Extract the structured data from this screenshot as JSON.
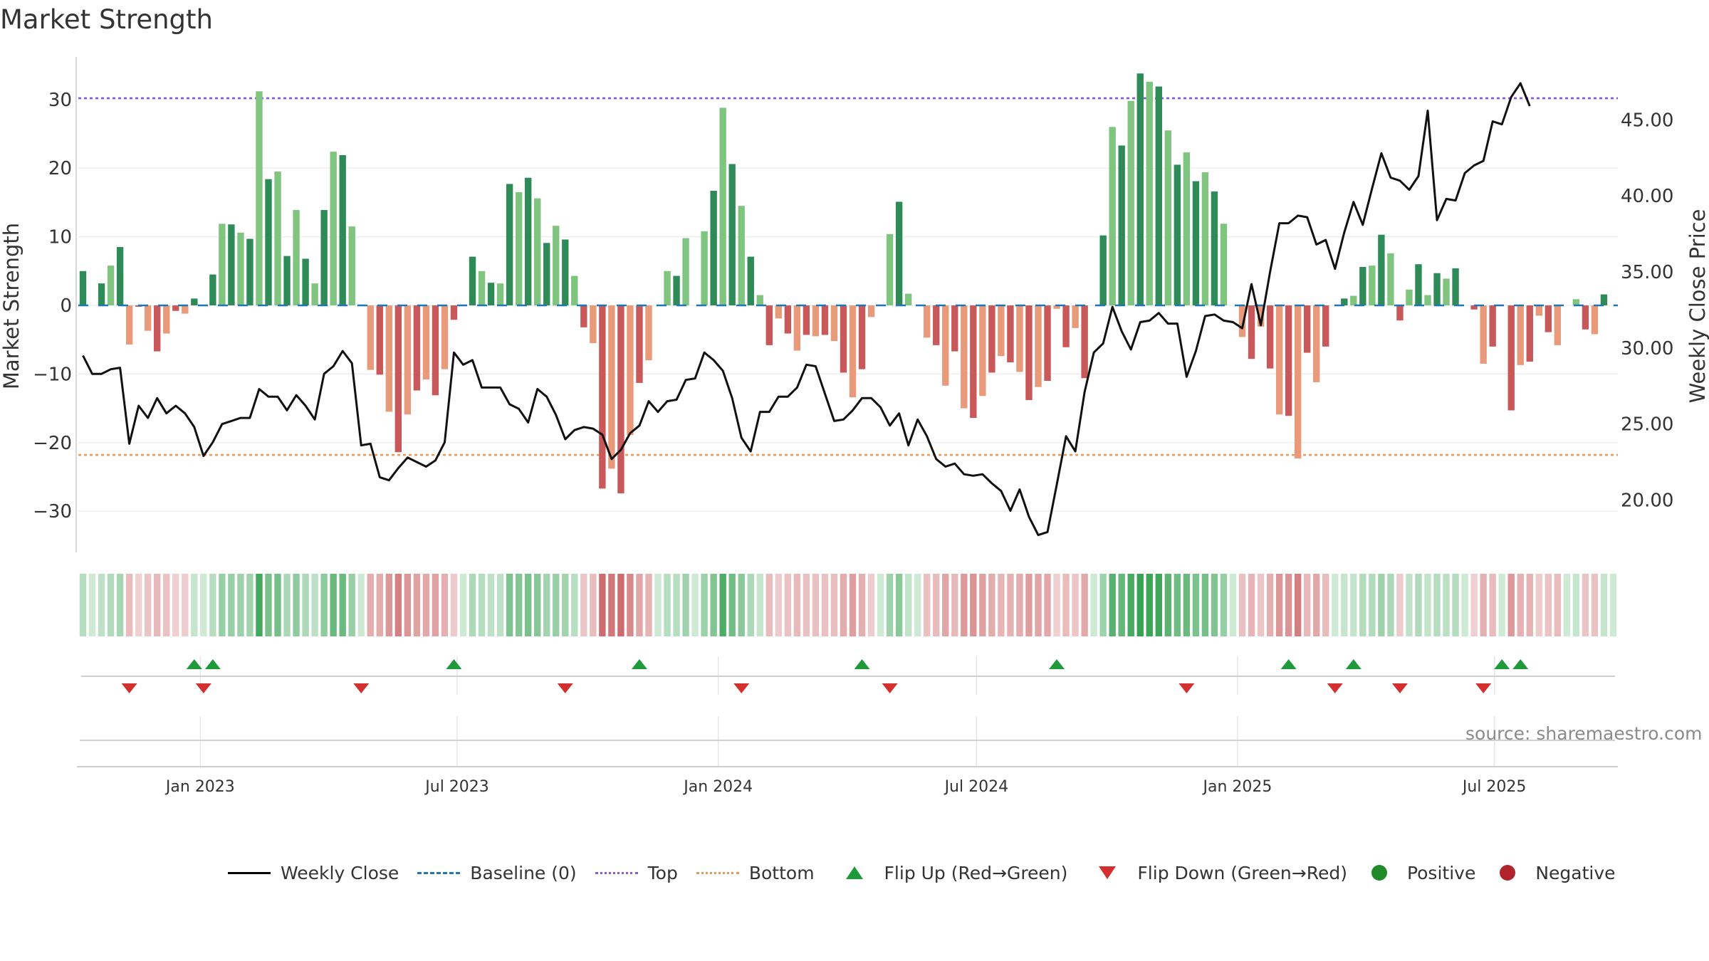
{
  "title": "Market Strength",
  "source": "source: sharemaestro.com",
  "colors": {
    "pos_dark": "#2e8b57",
    "pos_light": "#7fc47f",
    "neg_dark": "#c8585a",
    "neg_light": "#e89a7a",
    "line": "#111111",
    "top": "#8a5cd6",
    "bottom": "#e89a5a",
    "baseline": "#1f77b4",
    "flip_up": "#1f9a3a",
    "flip_down": "#d32f2f"
  },
  "legend": {
    "weekly_close": "Weekly Close",
    "baseline": "Baseline (0)",
    "top": "Top",
    "bottom": "Bottom",
    "flip_up": "Flip Up (Red→Green)",
    "flip_down": "Flip Down (Green→Red)",
    "positive": "Positive",
    "negative": "Negative"
  },
  "chart_data": {
    "type": "bar",
    "title": "Market Strength",
    "ylabel": "Market Strength",
    "y2label": "Weekly Close Price",
    "ylim": [
      -36,
      36
    ],
    "y2lim": [
      16.56,
      49.04
    ],
    "yticks": [
      30,
      20,
      10,
      0,
      -10,
      -20,
      -30
    ],
    "ytick_labels": [
      "30",
      "20",
      "10",
      "0",
      "−10",
      "−20",
      "−30"
    ],
    "y2ticks": [
      45,
      40,
      35,
      30,
      25,
      20
    ],
    "y2tick_labels": [
      "45.00",
      "40.00",
      "35.00",
      "30.00",
      "25.00",
      "20.00"
    ],
    "x_start": "2022-10-07",
    "x_end": "2025-09-26",
    "xticks": [
      {
        "date": "2023-01-01",
        "label": "Jan 2023"
      },
      {
        "date": "2023-07-01",
        "label": "Jul 2023"
      },
      {
        "date": "2024-01-01",
        "label": "Jan 2024"
      },
      {
        "date": "2024-07-01",
        "label": "Jul 2024"
      },
      {
        "date": "2025-01-01",
        "label": "Jan 2025"
      },
      {
        "date": "2025-07-01",
        "label": "Jul 2025"
      }
    ],
    "top_level": 30.2,
    "bottom_level": -21.8,
    "strength": [
      5,
      0,
      3.2,
      5.8,
      8.5,
      -5.7,
      -0.2,
      -3.7,
      -6.7,
      -4.1,
      -0.8,
      -1.2,
      1,
      0,
      4.5,
      11.9,
      11.8,
      10.6,
      9.7,
      31.2,
      18.4,
      19.5,
      7.2,
      13.9,
      6.8,
      3.2,
      13.9,
      22.4,
      21.9,
      11.5,
      0,
      -9.4,
      -10.1,
      -15.5,
      -21.4,
      -15.9,
      -12.4,
      -10.8,
      -13.1,
      -9.3,
      -2.1,
      0,
      7.1,
      5,
      3.3,
      3.2,
      17.7,
      16.5,
      18.6,
      15.6,
      9.1,
      11.6,
      9.6,
      4.3,
      -3.2,
      -5.5,
      -26.7,
      -23.8,
      -27.4,
      -18.9,
      -11.3,
      -8,
      0,
      5,
      4.3,
      9.8,
      0,
      10.8,
      16.7,
      28.8,
      20.6,
      14.5,
      7.1,
      1.5,
      -5.8,
      -1.9,
      -4.1,
      -6.6,
      -4.3,
      -4.5,
      -4.3,
      -5.2,
      -9.8,
      -13.4,
      -9.3,
      -1.7,
      0,
      10.4,
      15.1,
      1.7,
      0,
      -4.7,
      -5.8,
      -11.7,
      -6.7,
      -15,
      -16.4,
      -13.2,
      -9.8,
      -7.4,
      -8.3,
      -9.7,
      -13.8,
      -11.9,
      -11,
      -0.5,
      -6.1,
      -3.3,
      -10.6,
      0,
      10.2,
      26,
      23.3,
      29.8,
      33.8,
      32.6,
      31.9,
      25.5,
      20.5,
      22.3,
      18.1,
      19.4,
      16.6,
      11.9,
      0,
      -4.6,
      -7.8,
      -3.1,
      -9.2,
      -15.9,
      -16.1,
      -22.3,
      -6.9,
      -11.2,
      -6,
      0,
      1,
      1.4,
      5.6,
      5.8,
      10.3,
      7.6,
      -2.2,
      2.3,
      6,
      1.5,
      4.7,
      3.9,
      5.4,
      0,
      -0.6,
      -8.5,
      -6,
      0,
      -15.3,
      -8.7,
      -8.2,
      -1.5,
      -3.9,
      -5.8,
      0,
      0.9,
      -3.5,
      -4.2,
      1.6,
      0
    ],
    "close": [
      29.5,
      28.3,
      28.3,
      28.6,
      28.7,
      23.7,
      26.2,
      25.4,
      26.7,
      25.7,
      26.2,
      25.7,
      24.8,
      22.9,
      23.8,
      25.0,
      25.2,
      25.4,
      25.4,
      27.3,
      26.8,
      26.8,
      25.9,
      26.9,
      26.2,
      25.3,
      28.3,
      28.8,
      29.8,
      29.0,
      23.6,
      23.7,
      21.5,
      21.3,
      22.1,
      22.8,
      22.5,
      22.2,
      22.6,
      23.8,
      29.7,
      28.9,
      29.2,
      27.4,
      27.4,
      27.4,
      26.3,
      26.0,
      25.1,
      27.3,
      26.8,
      25.6,
      24.0,
      24.6,
      24.8,
      24.7,
      24.3,
      22.7,
      23.3,
      24.4,
      24.9,
      26.5,
      25.8,
      26.5,
      26.6,
      27.9,
      28.0,
      29.7,
      29.2,
      28.5,
      26.7,
      24.1,
      23.2,
      25.8,
      25.8,
      26.8,
      26.8,
      27.4,
      28.9,
      28.8,
      27.0,
      25.2,
      25.3,
      25.9,
      26.7,
      26.7,
      26.1,
      24.9,
      25.7,
      23.6,
      25.3,
      24.2,
      22.7,
      22.2,
      22.4,
      21.7,
      21.6,
      21.7,
      21.1,
      20.6,
      19.3,
      20.7,
      18.9,
      17.7,
      17.9,
      21.0,
      24.2,
      23.2,
      27.1,
      29.7,
      30.3,
      32.7,
      31.1,
      29.9,
      31.7,
      31.8,
      32.3,
      31.6,
      31.6,
      28.1,
      29.8,
      32.1,
      32.2,
      31.8,
      31.7,
      31.3,
      34.2,
      31.5,
      35.0,
      38.2,
      38.2,
      38.7,
      38.6,
      36.8,
      37.1,
      35.2,
      37.6,
      39.6,
      38.1,
      40.5,
      42.8,
      41.2,
      41.0,
      40.4,
      41.3,
      45.6,
      38.4,
      39.8,
      39.7,
      41.5,
      42.0,
      42.3,
      44.9,
      44.7,
      46.5,
      47.4,
      45.9
    ],
    "flip_up_weeks": [
      12,
      14,
      40,
      60,
      84,
      105,
      130,
      137,
      153,
      155
    ],
    "flip_down_weeks": [
      5,
      13,
      30,
      52,
      71,
      87,
      119,
      135,
      142,
      151
    ]
  }
}
